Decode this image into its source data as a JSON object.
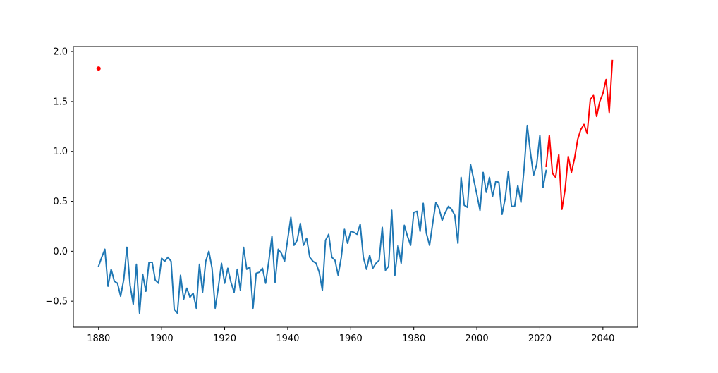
{
  "chart_data": {
    "type": "line",
    "title": "",
    "xlabel": "",
    "ylabel": "",
    "xlim": [
      1872,
      2051
    ],
    "ylim": [
      -0.76,
      2.05
    ],
    "x_ticks": [
      1880,
      1900,
      1920,
      1940,
      1960,
      1980,
      2000,
      2020,
      2040
    ],
    "y_ticks": [
      -0.5,
      0.0,
      0.5,
      1.0,
      1.5,
      2.0
    ],
    "grid": false,
    "colors": {
      "historical": "#1f77b4",
      "forecast": "#ff0000",
      "marker": "#ff0000"
    },
    "series": [
      {
        "key": "historical",
        "x": [
          1880,
          1881,
          1882,
          1883,
          1884,
          1885,
          1886,
          1887,
          1888,
          1889,
          1890,
          1891,
          1892,
          1893,
          1894,
          1895,
          1896,
          1897,
          1898,
          1899,
          1900,
          1901,
          1902,
          1903,
          1904,
          1905,
          1906,
          1907,
          1908,
          1909,
          1910,
          1911,
          1912,
          1913,
          1914,
          1915,
          1916,
          1917,
          1918,
          1919,
          1920,
          1921,
          1922,
          1923,
          1924,
          1925,
          1926,
          1927,
          1928,
          1929,
          1930,
          1931,
          1932,
          1933,
          1934,
          1935,
          1936,
          1937,
          1938,
          1939,
          1940,
          1941,
          1942,
          1943,
          1944,
          1945,
          1946,
          1947,
          1948,
          1949,
          1950,
          1951,
          1952,
          1953,
          1954,
          1955,
          1956,
          1957,
          1958,
          1959,
          1960,
          1961,
          1962,
          1963,
          1964,
          1965,
          1966,
          1967,
          1968,
          1969,
          1970,
          1971,
          1972,
          1973,
          1974,
          1975,
          1976,
          1977,
          1978,
          1979,
          1980,
          1981,
          1982,
          1983,
          1984,
          1985,
          1986,
          1987,
          1988,
          1989,
          1990,
          1991,
          1992,
          1993,
          1994,
          1995,
          1996,
          1997,
          1998,
          1999,
          2000,
          2001,
          2002,
          2003,
          2004,
          2005,
          2006,
          2007,
          2008,
          2009,
          2010,
          2011,
          2012,
          2013,
          2014,
          2015,
          2016,
          2017,
          2018,
          2019,
          2020,
          2021,
          2022
        ],
        "y": [
          -0.15,
          -0.06,
          0.02,
          -0.35,
          -0.18,
          -0.3,
          -0.32,
          -0.45,
          -0.28,
          0.04,
          -0.34,
          -0.53,
          -0.13,
          -0.62,
          -0.23,
          -0.4,
          -0.11,
          -0.11,
          -0.29,
          -0.32,
          -0.07,
          -0.1,
          -0.06,
          -0.1,
          -0.58,
          -0.62,
          -0.24,
          -0.48,
          -0.37,
          -0.46,
          -0.42,
          -0.57,
          -0.13,
          -0.41,
          -0.1,
          0.0,
          -0.17,
          -0.57,
          -0.36,
          -0.12,
          -0.32,
          -0.17,
          -0.31,
          -0.41,
          -0.18,
          -0.39,
          0.04,
          -0.18,
          -0.16,
          -0.57,
          -0.22,
          -0.21,
          -0.17,
          -0.32,
          -0.1,
          0.15,
          -0.31,
          0.02,
          -0.02,
          -0.1,
          0.12,
          0.34,
          0.06,
          0.11,
          0.28,
          0.06,
          0.13,
          -0.06,
          -0.1,
          -0.12,
          -0.21,
          -0.39,
          0.11,
          0.17,
          -0.06,
          -0.09,
          -0.24,
          -0.06,
          0.22,
          0.08,
          0.2,
          0.19,
          0.17,
          0.27,
          -0.06,
          -0.18,
          -0.04,
          -0.17,
          -0.12,
          -0.09,
          0.24,
          -0.19,
          -0.15,
          0.41,
          -0.24,
          0.06,
          -0.12,
          0.26,
          0.15,
          0.06,
          0.39,
          0.4,
          0.2,
          0.48,
          0.18,
          0.06,
          0.28,
          0.49,
          0.43,
          0.31,
          0.39,
          0.45,
          0.42,
          0.36,
          0.08,
          0.74,
          0.46,
          0.44,
          0.87,
          0.72,
          0.57,
          0.41,
          0.79,
          0.59,
          0.74,
          0.55,
          0.7,
          0.69,
          0.37,
          0.53,
          0.8,
          0.45,
          0.45,
          0.66,
          0.49,
          0.83,
          1.26,
          0.99,
          0.76,
          0.87,
          1.16,
          0.64,
          0.81
        ]
      },
      {
        "key": "forecast",
        "x": [
          2022,
          2023,
          2024,
          2025,
          2026,
          2027,
          2028,
          2029,
          2030,
          2031,
          2032,
          2033,
          2034,
          2035,
          2036,
          2037,
          2038,
          2039,
          2040,
          2041,
          2042,
          2043
        ],
        "y": [
          0.85,
          1.16,
          0.78,
          0.74,
          0.97,
          0.42,
          0.62,
          0.95,
          0.79,
          0.93,
          1.12,
          1.22,
          1.27,
          1.18,
          1.52,
          1.56,
          1.35,
          1.5,
          1.58,
          1.72,
          1.39,
          1.91
        ]
      }
    ],
    "markers": [
      {
        "x": 1880,
        "y": 1.83
      }
    ]
  }
}
